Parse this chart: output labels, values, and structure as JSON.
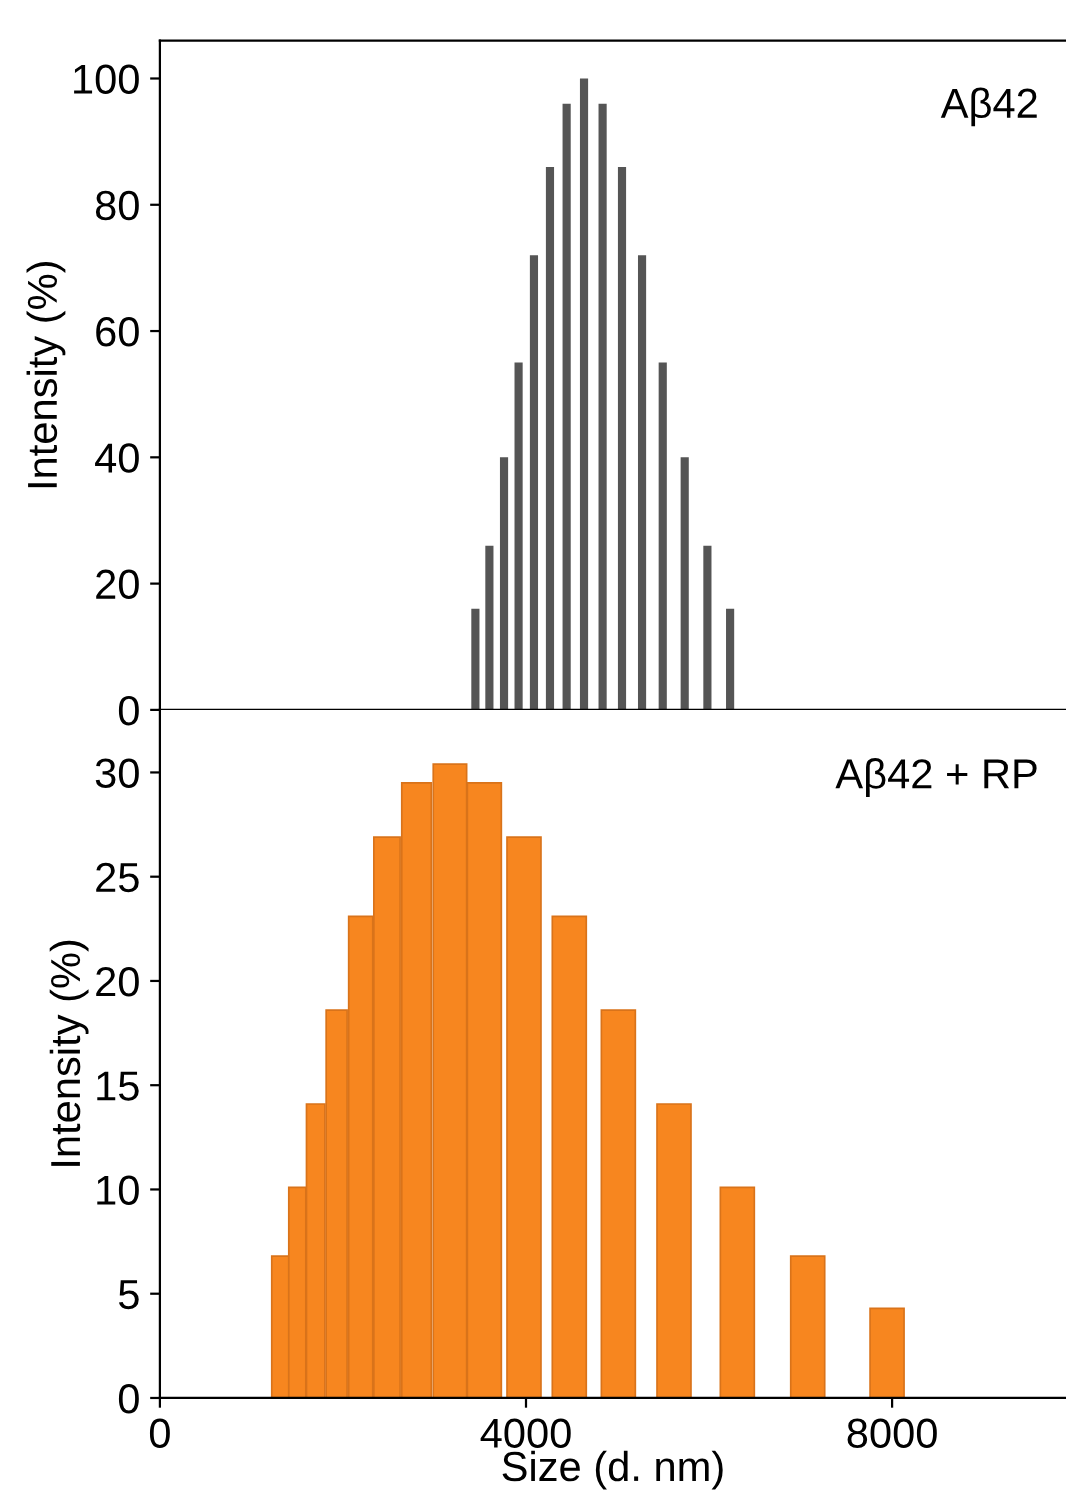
{
  "chart_data": [
    {
      "type": "bar",
      "ylabel": "Intensity (%)",
      "annotations": [
        "Aβ42"
      ],
      "x": [
        3447,
        3600,
        3760,
        3919,
        4087,
        4262,
        4444,
        4634,
        4837,
        5049,
        5268,
        5494,
        5734,
        5982,
        6230
      ],
      "series": [
        {
          "color": "#555555",
          "values": [
            16,
            26,
            40,
            55,
            72,
            86,
            96,
            100,
            96,
            86,
            72,
            55,
            40,
            26,
            16
          ]
        }
      ],
      "xlim": [
        0,
        9900
      ],
      "ylim": [
        0,
        106
      ],
      "yticks": [
        0,
        20,
        40,
        60,
        80,
        100
      ],
      "tick_labels": "y"
    },
    {
      "type": "bar",
      "ylabel": "Intensity (%)",
      "xlabel": "Size (d. nm)",
      "annotations": [
        "Aβ42 + RP"
      ],
      "x": [
        1315,
        1501,
        1702,
        1931,
        2194,
        2481,
        2804,
        3169,
        3545,
        3978,
        4473,
        5009,
        5617,
        6309,
        7078,
        7945
      ],
      "series": [
        {
          "color": "#f7861f",
          "values": [
            6.8,
            10.1,
            14.1,
            18.6,
            23.1,
            26.9,
            29.5,
            30.4,
            29.5,
            26.9,
            23.1,
            18.6,
            14.1,
            10.1,
            6.8,
            4.3
          ]
        }
      ],
      "xlim": [
        0,
        9900
      ],
      "ylim": [
        0,
        33
      ],
      "xticks": [
        0,
        4000,
        8000
      ],
      "yticks": [
        0,
        5,
        10,
        15,
        20,
        25,
        30
      ]
    }
  ]
}
